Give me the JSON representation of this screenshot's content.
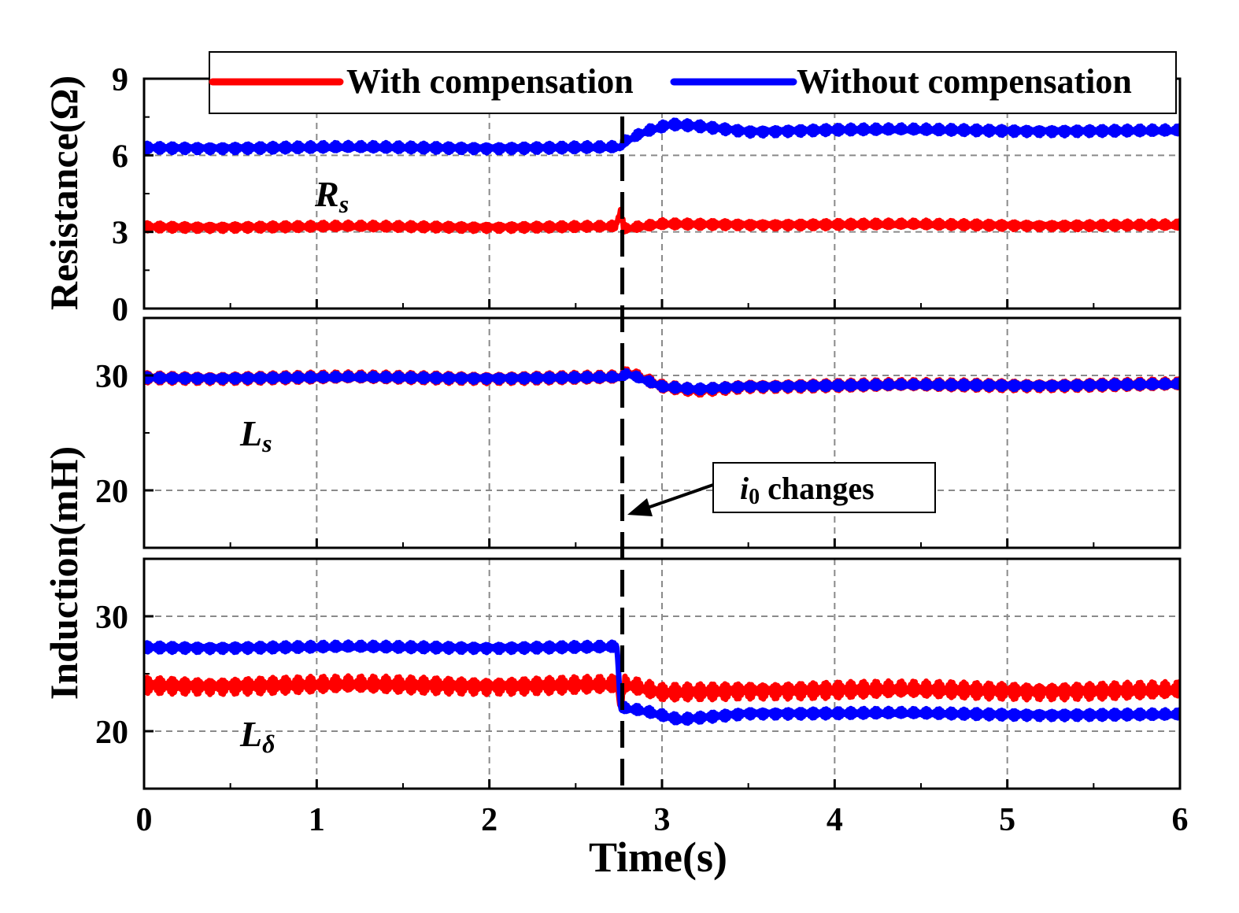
{
  "chart_data": {
    "type": "line",
    "x_axis": {
      "label": "Time(s)",
      "range": [
        0,
        6
      ],
      "ticks": [
        0,
        1,
        2,
        3,
        4,
        5,
        6
      ],
      "tick_labels": [
        "0",
        "1",
        "2",
        "3",
        "4",
        "5",
        "6"
      ]
    },
    "legend": {
      "position": "top",
      "entries": [
        {
          "name": "With compensation",
          "color": "#ff0000"
        },
        {
          "name": "Without compensation",
          "color": "#0000ff"
        }
      ]
    },
    "event": {
      "time": 2.77,
      "label_var": "i",
      "label_sub": "0",
      "label_text": " changes"
    },
    "shared_ylabels": {
      "resistance": "Resistance(Ω)",
      "induction": "Induction(mH)"
    },
    "panels": [
      {
        "id": "rs",
        "var": "R",
        "sub": "s",
        "ylim": [
          0,
          9
        ],
        "yticks": [
          0,
          3,
          6,
          9
        ],
        "ytick_labels": [
          "0",
          "3",
          "6",
          "9"
        ],
        "grid_y": [
          3,
          6
        ],
        "series": [
          {
            "name": "With compensation",
            "color": "#ff0000",
            "points": [
              [
                0,
                3.2
              ],
              [
                2.73,
                3.2
              ],
              [
                2.76,
                3.8
              ],
              [
                2.78,
                3.1
              ],
              [
                3.0,
                3.3
              ],
              [
                3.5,
                3.3
              ],
              [
                6,
                3.25
              ]
            ],
            "ripple": 0.18
          },
          {
            "name": "Without compensation",
            "color": "#0000ff",
            "points": [
              [
                0,
                6.3
              ],
              [
                2.76,
                6.3
              ],
              [
                2.78,
                6.5
              ],
              [
                2.9,
                6.9
              ],
              [
                3.05,
                7.2
              ],
              [
                3.2,
                7.15
              ],
              [
                3.5,
                6.95
              ],
              [
                4,
                7.0
              ],
              [
                6,
                6.95
              ]
            ],
            "ripple": 0.2
          }
        ]
      },
      {
        "id": "ls",
        "var": "L",
        "sub": "s",
        "ylim": [
          15,
          35
        ],
        "yticks": [
          20,
          30
        ],
        "ytick_labels": [
          "20",
          "30"
        ],
        "grid_y": [
          20,
          30
        ],
        "series": [
          {
            "name": "With compensation",
            "color": "#ff0000",
            "points": [
              [
                0,
                29.8
              ],
              [
                2.76,
                29.8
              ],
              [
                2.8,
                30.2
              ],
              [
                3.0,
                29.0
              ],
              [
                3.2,
                28.7
              ],
              [
                3.5,
                29.1
              ],
              [
                6,
                29.2
              ]
            ],
            "ripple": 0.5
          },
          {
            "name": "Without compensation",
            "color": "#0000ff",
            "points": [
              [
                0,
                29.8
              ],
              [
                2.76,
                29.8
              ],
              [
                2.8,
                30.1
              ],
              [
                3.0,
                29.0
              ],
              [
                3.2,
                28.8
              ],
              [
                3.5,
                29.1
              ],
              [
                6,
                29.2
              ]
            ],
            "ripple": 0.4
          }
        ]
      },
      {
        "id": "ld",
        "var": "L",
        "sub": "δ",
        "ylim": [
          15,
          35
        ],
        "yticks": [
          20,
          30
        ],
        "ytick_labels": [
          "20",
          "30"
        ],
        "grid_y": [
          20,
          30
        ],
        "series": [
          {
            "name": "With compensation",
            "color": "#ff0000",
            "points": [
              [
                0,
                24.0
              ],
              [
                2.74,
                24.0
              ],
              [
                2.76,
                22.0
              ],
              [
                2.78,
                24.0
              ],
              [
                3.0,
                23.3
              ],
              [
                3.5,
                23.6
              ],
              [
                6,
                23.5
              ]
            ],
            "ripple": 0.8
          },
          {
            "name": "Without compensation",
            "color": "#0000ff",
            "points": [
              [
                0,
                27.3
              ],
              [
                2.74,
                27.3
              ],
              [
                2.76,
                22.0
              ],
              [
                2.9,
                21.7
              ],
              [
                3.1,
                21.0
              ],
              [
                3.5,
                21.6
              ],
              [
                6,
                21.4
              ]
            ],
            "ripple": 0.45
          }
        ]
      }
    ]
  }
}
